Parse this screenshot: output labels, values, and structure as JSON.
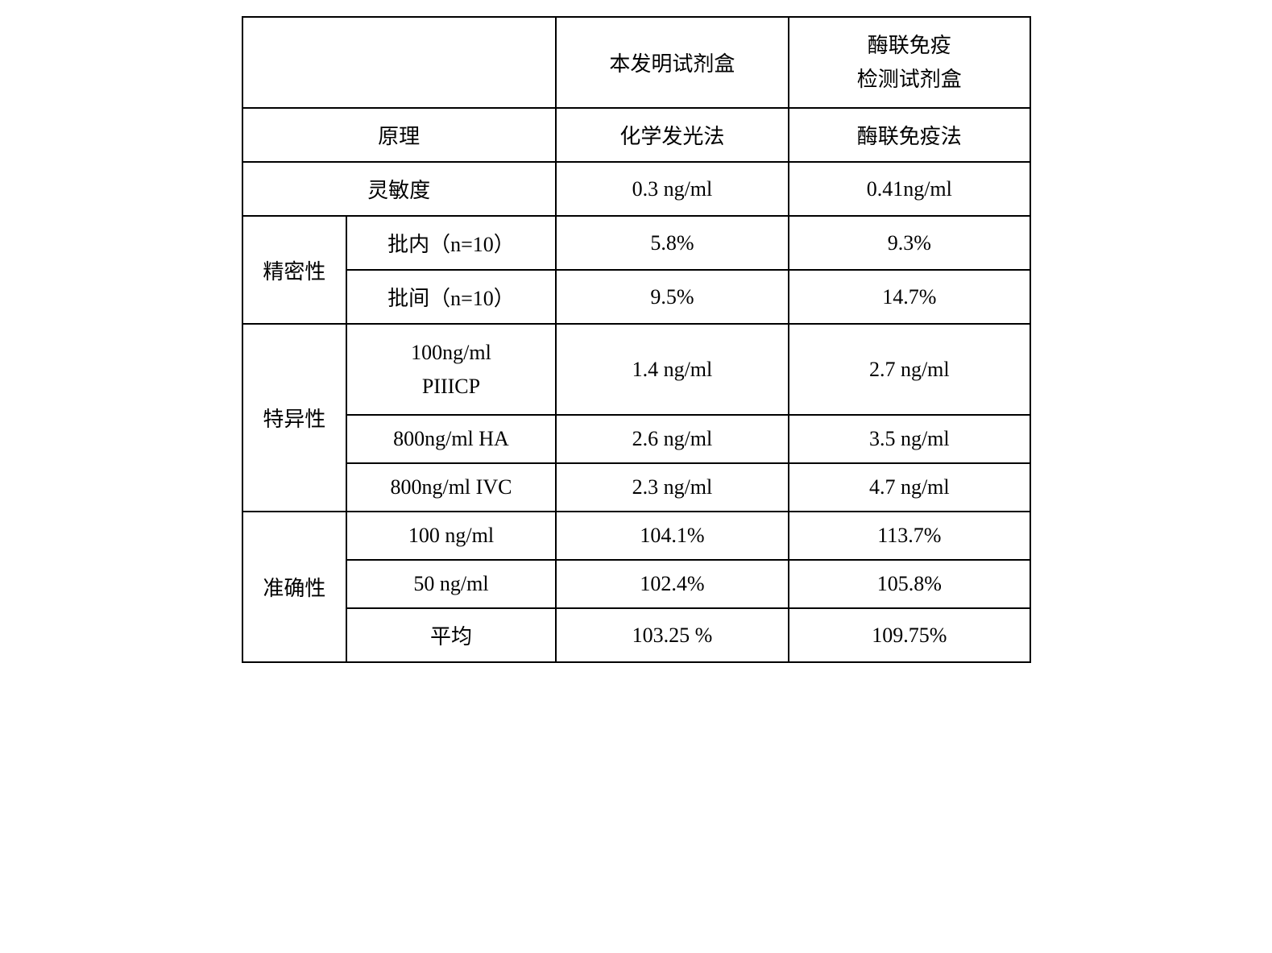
{
  "table": {
    "header": {
      "col1_2_blank": "",
      "col3": "本发明试剂盒",
      "col4_line1": "酶联免疫",
      "col4_line2": "检测试剂盒"
    },
    "rows": {
      "principle": {
        "label": "原理",
        "kit": "化学发光法",
        "elisa": "酶联免疫法"
      },
      "sensitivity": {
        "label": "灵敏度",
        "kit": "0.3 ng/ml",
        "elisa": "0.41ng/ml"
      },
      "precision": {
        "group_label": "精密性",
        "intra": {
          "label": "批内（n=10）",
          "kit": "5.8%",
          "elisa": "9.3%"
        },
        "inter": {
          "label": "批间（n=10）",
          "kit": "9.5%",
          "elisa": "14.7%"
        }
      },
      "specificity": {
        "group_label": "特异性",
        "r1": {
          "label_line1": "100ng/ml",
          "label_line2": "PIIICP",
          "kit": "1.4 ng/ml",
          "elisa": "2.7 ng/ml"
        },
        "r2": {
          "label": "800ng/ml HA",
          "kit": "2.6 ng/ml",
          "elisa": "3.5 ng/ml"
        },
        "r3": {
          "label": "800ng/ml IVC",
          "kit": "2.3 ng/ml",
          "elisa": "4.7 ng/ml"
        }
      },
      "accuracy": {
        "group_label": "准确性",
        "r1": {
          "label": "100 ng/ml",
          "kit": "104.1%",
          "elisa": "113.7%"
        },
        "r2": {
          "label": "50 ng/ml",
          "kit": "102.4%",
          "elisa": "105.8%"
        },
        "r3": {
          "label": "平均",
          "kit": "103.25 %",
          "elisa": "109.75%"
        }
      }
    }
  }
}
